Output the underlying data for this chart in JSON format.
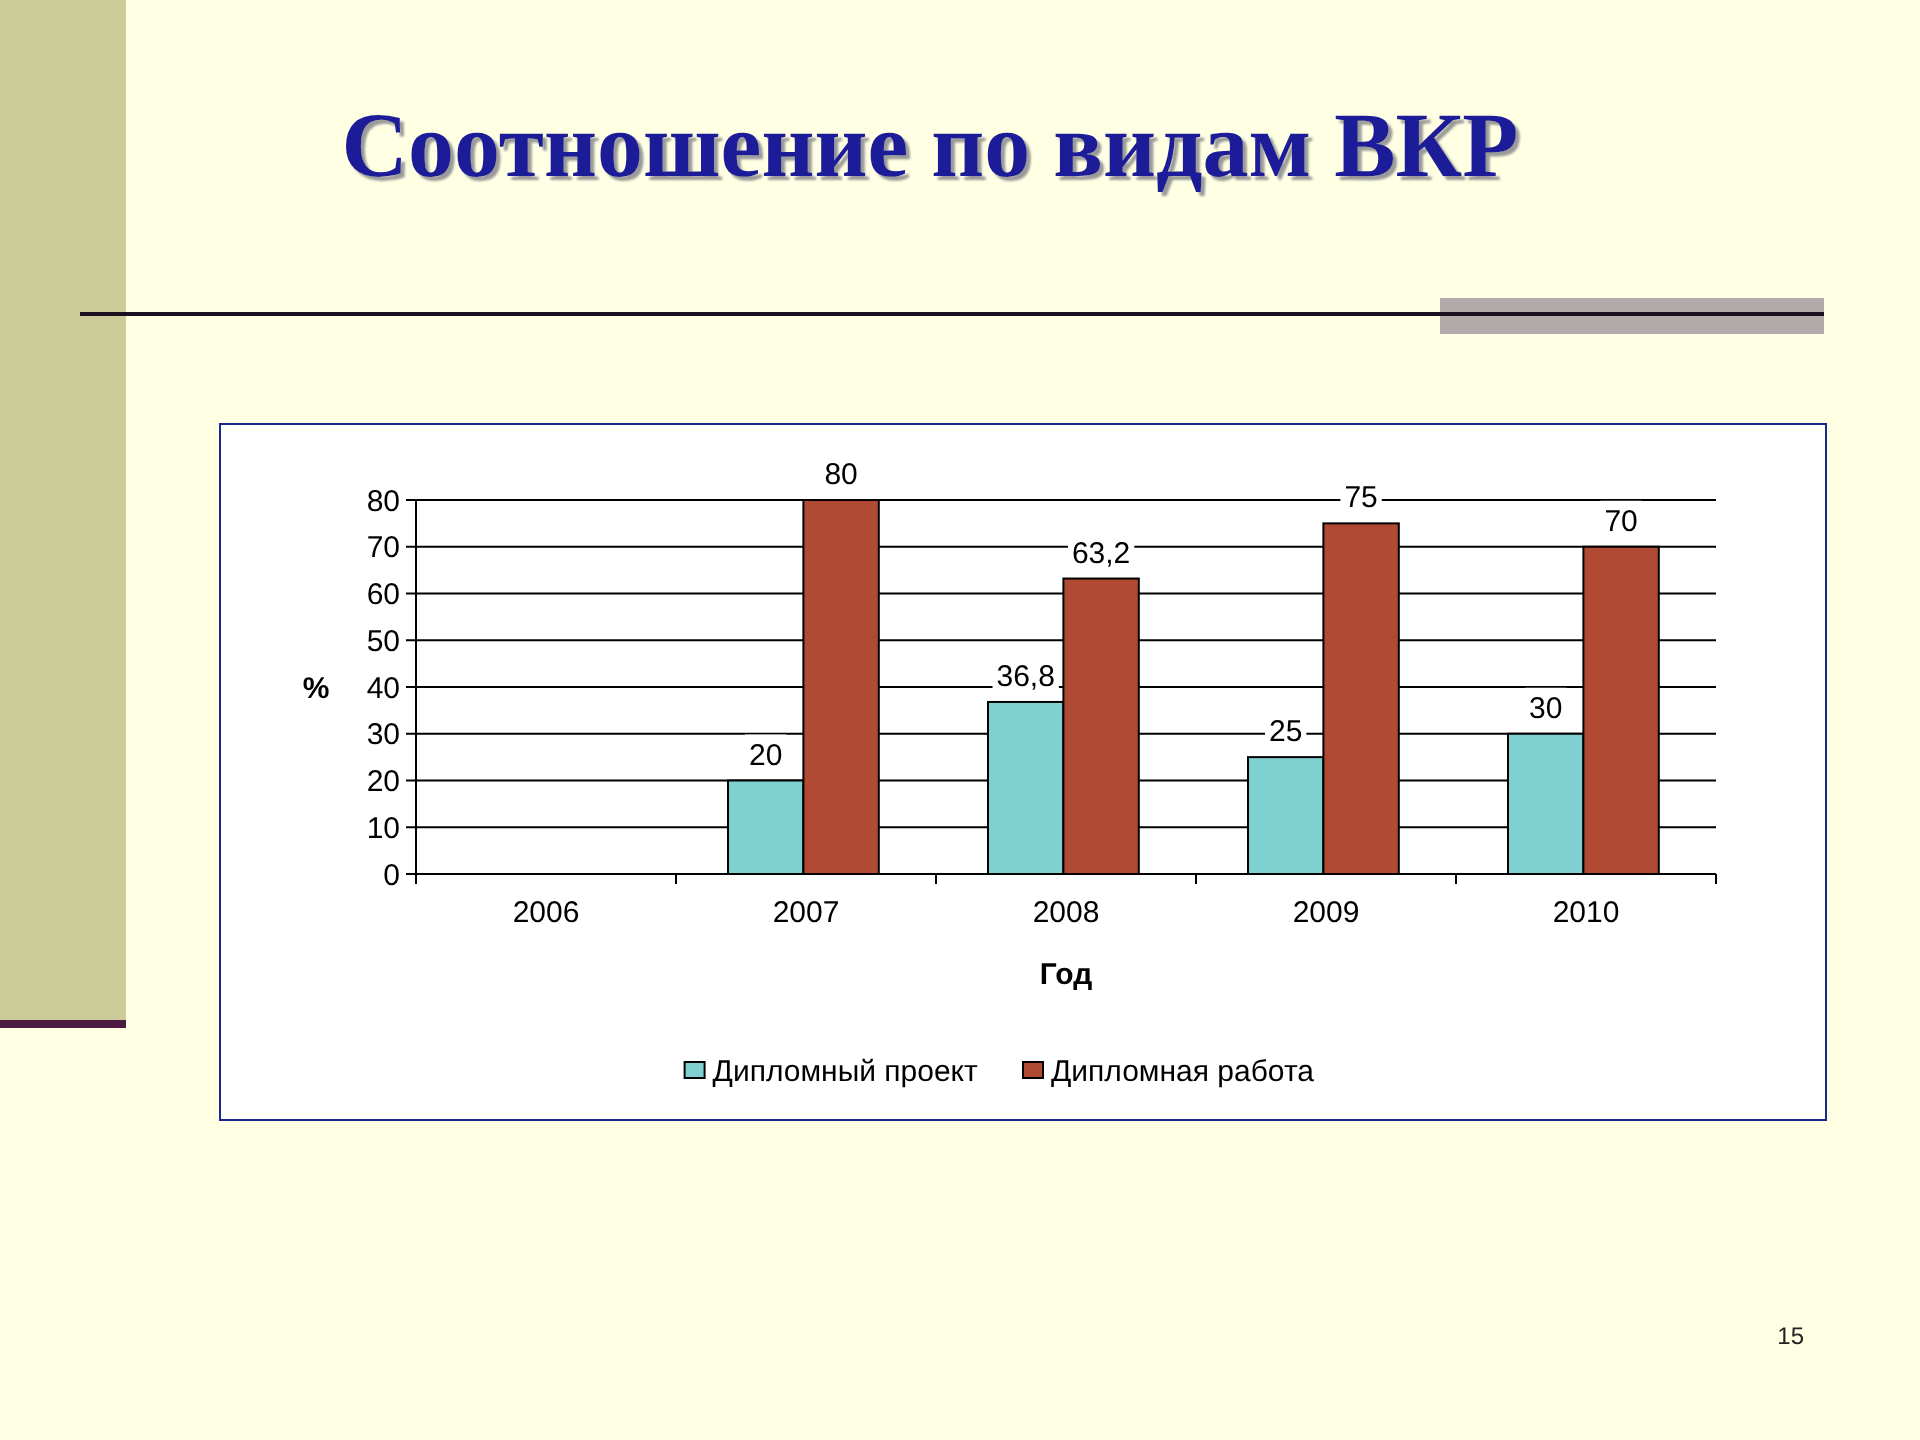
{
  "chart_data": {
    "type": "bar",
    "title": "Соотношение по видам ВКР",
    "xlabel": "Год",
    "ylabel": "%",
    "categories": [
      "2006",
      "2007",
      "2008",
      "2009",
      "2010"
    ],
    "series": [
      {
        "name": "Дипломный проект",
        "color": "#7fd0d0",
        "values": [
          null,
          20,
          36.8,
          25,
          30
        ],
        "value_labels": [
          null,
          "20",
          "36,8",
          "25",
          "30"
        ]
      },
      {
        "name": "Дипломная работа",
        "color": "#b04a33",
        "values": [
          null,
          80,
          63.2,
          75,
          70
        ],
        "value_labels": [
          null,
          "80",
          "63,2",
          "75",
          "70"
        ]
      }
    ],
    "ylim": [
      0,
      80
    ],
    "yticks": [
      0,
      10,
      20,
      30,
      40,
      50,
      60,
      70,
      80
    ],
    "grid": "y",
    "legend": "bottom",
    "annotations": [
      "15"
    ]
  }
}
